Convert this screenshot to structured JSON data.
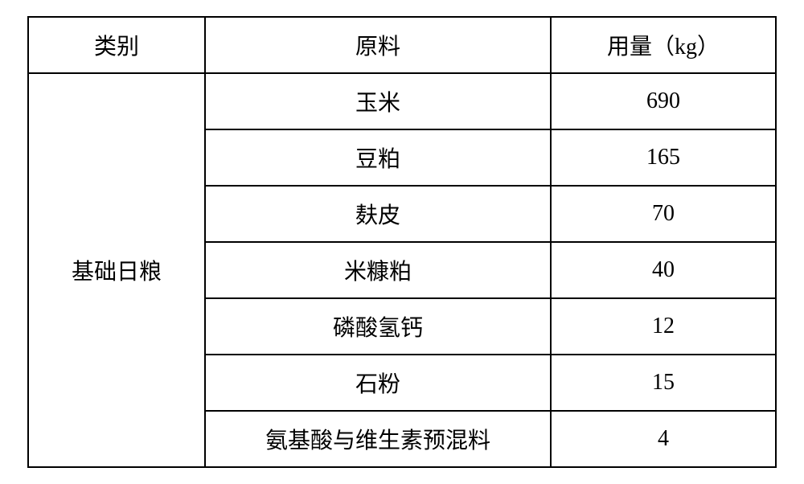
{
  "table": {
    "headers": {
      "category": "类别",
      "material": "原料",
      "amount": "用量（kg）"
    },
    "category_label": "基础日粮",
    "rows": [
      {
        "material": "玉米",
        "amount": "690"
      },
      {
        "material": "豆粕",
        "amount": "165"
      },
      {
        "material": "麸皮",
        "amount": "70"
      },
      {
        "material": "米糠粕",
        "amount": "40"
      },
      {
        "material": "磷酸氢钙",
        "amount": "12"
      },
      {
        "material": "石粉",
        "amount": "15"
      },
      {
        "material": "氨基酸与维生素预混料",
        "amount": "4"
      }
    ],
    "styling": {
      "border_color": "#000000",
      "border_width": 2,
      "background_color": "#ffffff",
      "text_color": "#000000",
      "font_size": 28,
      "font_family": "SimSun",
      "cell_padding_v": 14,
      "cell_padding_h": 20,
      "col_widths": {
        "category": 220,
        "material": 430,
        "amount": 280
      }
    }
  }
}
